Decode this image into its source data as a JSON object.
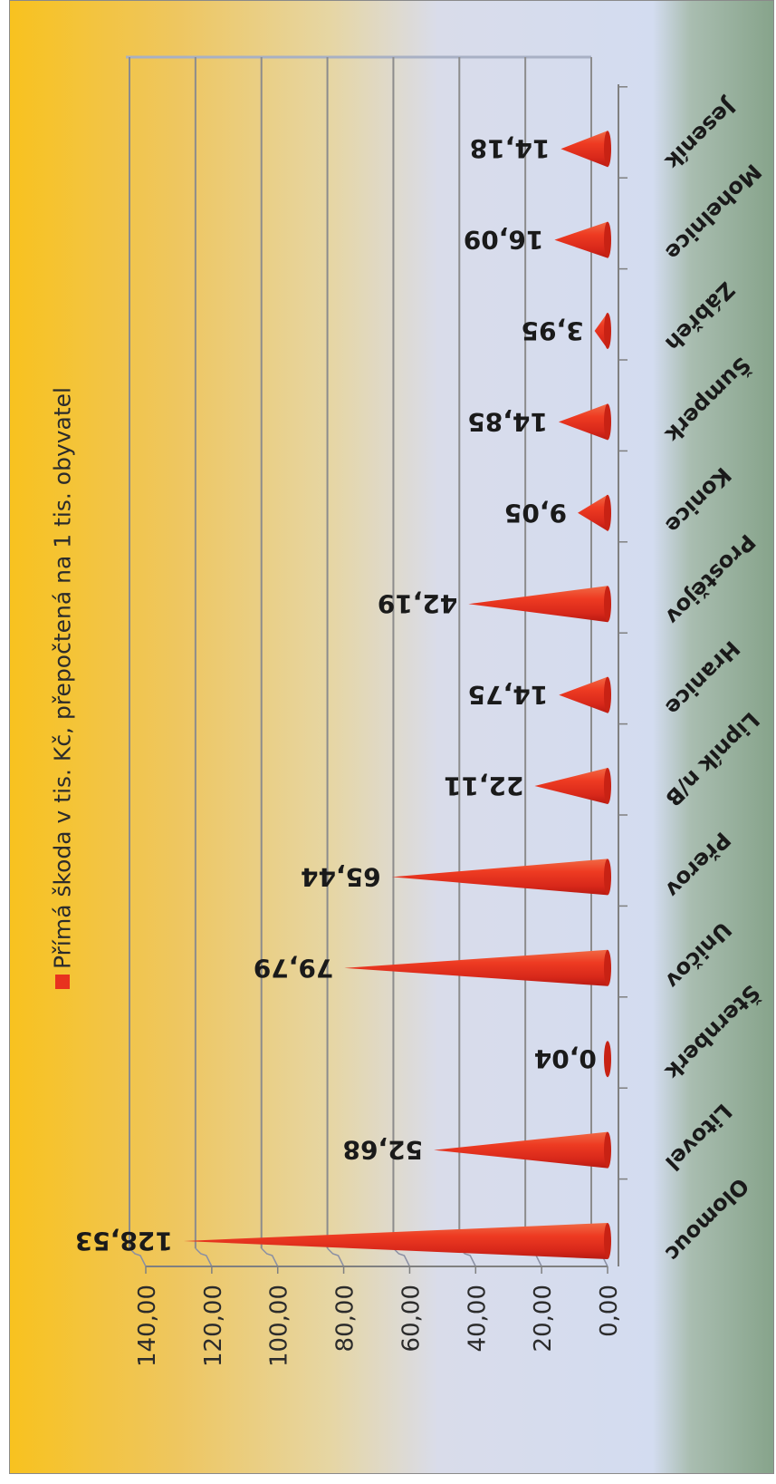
{
  "chart_data": {
    "type": "bar",
    "orientation": "horizontal-rotated-3d-cone",
    "categories": [
      "Olomouc",
      "Litovel",
      "Šternberk",
      "Uničov",
      "Přerov",
      "Lipník n/B",
      "Hranice",
      "Prostějov",
      "Konice",
      "Šumperk",
      "Zábřeh",
      "Mohelnice",
      "Jeseník"
    ],
    "series": [
      {
        "name": "Přímá škoda v tis. Kč, přepočtená na 1 tis. obyvatel",
        "values": [
          128.53,
          52.68,
          0.04,
          79.79,
          65.44,
          22.11,
          14.75,
          42.19,
          9.05,
          14.85,
          3.95,
          16.09,
          14.18
        ],
        "labels": [
          "128,53",
          "52,68",
          "0,04",
          "79,79",
          "65,44",
          "22,11",
          "14,75",
          "42,19",
          "9,05",
          "14,85",
          "3,95",
          "16,09",
          "14,18"
        ],
        "color": "#e8321e"
      }
    ],
    "ticks": [
      "0,00",
      "20,00",
      "40,00",
      "60,00",
      "80,00",
      "100,00",
      "120,00",
      "140,00"
    ],
    "ylim": [
      0,
      140
    ],
    "grid": true,
    "legend": "top"
  },
  "colors": {
    "bg_yellow": "#f8c21f",
    "bg_blue": "#d6ddf0",
    "bg_green": "#8faa90",
    "bar": "#e8321e",
    "grid": "#8c8c8c"
  }
}
